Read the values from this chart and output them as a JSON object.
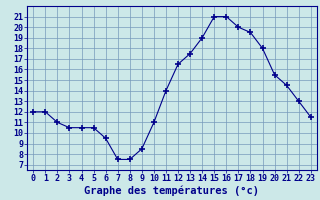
{
  "x": [
    0,
    1,
    2,
    3,
    4,
    5,
    6,
    7,
    8,
    9,
    10,
    11,
    12,
    13,
    14,
    15,
    16,
    17,
    18,
    19,
    20,
    21,
    22,
    23
  ],
  "y": [
    12.0,
    12.0,
    11.0,
    10.5,
    10.5,
    10.5,
    9.5,
    7.5,
    7.5,
    8.5,
    11.0,
    14.0,
    16.5,
    17.5,
    19.0,
    21.0,
    21.0,
    20.0,
    19.5,
    18.0,
    15.5,
    14.5,
    13.0,
    11.5
  ],
  "line_color": "#00008b",
  "marker": "+",
  "marker_size": 4,
  "bg_color": "#cce8e8",
  "grid_color": "#7799bb",
  "xlabel": "Graphe des températures (°c)",
  "xlabel_color": "#00008b",
  "ylabel_ticks": [
    7,
    8,
    9,
    10,
    11,
    12,
    13,
    14,
    15,
    16,
    17,
    18,
    19,
    20,
    21
  ],
  "xtick_labels": [
    "0",
    "1",
    "2",
    "3",
    "4",
    "5",
    "6",
    "7",
    "8",
    "9",
    "10",
    "11",
    "12",
    "13",
    "14",
    "15",
    "16",
    "17",
    "18",
    "19",
    "20",
    "21",
    "22",
    "23"
  ],
  "ylim": [
    6.5,
    22.0
  ],
  "xlim": [
    -0.5,
    23.5
  ],
  "tick_color": "#00008b",
  "spine_color": "#00008b",
  "xlabel_fontsize": 7.5,
  "tick_fontsize": 6.0
}
